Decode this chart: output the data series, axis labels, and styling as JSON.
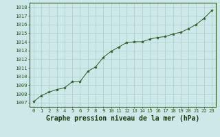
{
  "x": [
    0,
    1,
    2,
    3,
    4,
    5,
    6,
    7,
    8,
    9,
    10,
    11,
    12,
    13,
    14,
    15,
    16,
    17,
    18,
    19,
    20,
    21,
    22,
    23
  ],
  "y": [
    1007.1,
    1007.8,
    1008.2,
    1008.5,
    1008.7,
    1009.4,
    1009.4,
    1010.6,
    1011.1,
    1012.2,
    1012.9,
    1013.4,
    1013.9,
    1014.0,
    1014.0,
    1014.3,
    1014.5,
    1014.6,
    1014.9,
    1015.1,
    1015.5,
    1016.0,
    1016.7,
    1017.6
  ],
  "line_color": "#2d5a1b",
  "marker_color": "#2d5a1b",
  "bg_color": "#cce8e8",
  "grid_color": "#aacccc",
  "xlabel": "Graphe pression niveau de la mer (hPa)",
  "xlabel_color": "#1a3a0a",
  "ylim": [
    1006.5,
    1018.5
  ],
  "xlim": [
    -0.5,
    23.5
  ],
  "tick_fontsize": 5.2,
  "xlabel_fontsize": 7.0,
  "outer_border_color": "#2d5a1b"
}
